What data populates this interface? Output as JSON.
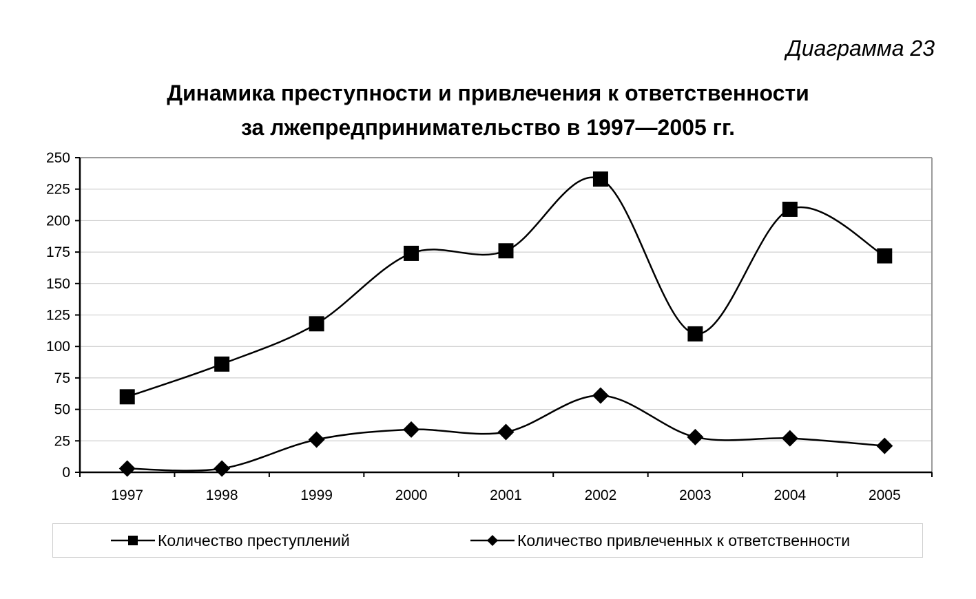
{
  "figure_label": "Диаграмма 23",
  "chart_data": {
    "type": "line",
    "title": "Динамика преступности и привлечения к ответственности",
    "subtitle": "за лжепредпринимательство в 1997—2005 гг.",
    "xlabel": "",
    "ylabel": "",
    "categories": [
      "1997",
      "1998",
      "1999",
      "2000",
      "2001",
      "2002",
      "2003",
      "2004",
      "2005"
    ],
    "yticks": [
      0,
      25,
      50,
      75,
      100,
      125,
      150,
      175,
      200,
      225,
      250
    ],
    "ylim": [
      0,
      250
    ],
    "grid": true,
    "legend": "bottom",
    "series": [
      {
        "name": "Количество преступлений",
        "marker": "square",
        "values": [
          60,
          86,
          118,
          174,
          176,
          233,
          110,
          209,
          172
        ]
      },
      {
        "name": "Количество привлеченных к ответственности",
        "marker": "diamond",
        "values": [
          3,
          3,
          26,
          34,
          32,
          61,
          28,
          27,
          21
        ]
      }
    ]
  }
}
